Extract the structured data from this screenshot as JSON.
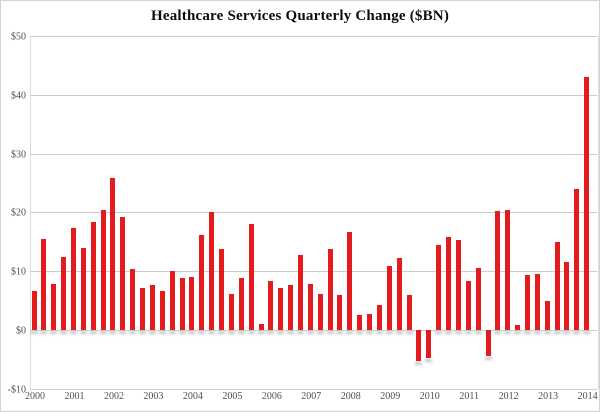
{
  "title": "Healthcare Services Quarterly Change ($BN)",
  "colors": {
    "bar": "#e31b1e",
    "gridline": "#cdcdcd",
    "axis_text": "#4f4f4f",
    "title_text": "#0d0d0d",
    "plot_border": "#dcdcdc"
  },
  "chart_data": {
    "type": "bar",
    "title": "Healthcare Services Quarterly Change ($BN)",
    "xlabel": "",
    "ylabel": "",
    "frequency": "quarterly",
    "x_start": "2000 Q1",
    "x_end": "2014 Q1",
    "x_tick_labels": [
      "2000",
      "2001",
      "2002",
      "2003",
      "2004",
      "2005",
      "2006",
      "2007",
      "2008",
      "2009",
      "2010",
      "2011",
      "2012",
      "2013",
      "2014"
    ],
    "y_tick_labels": [
      "$50",
      "$40",
      "$30",
      "$20",
      "$10",
      "$0",
      "-$10"
    ],
    "y_ticks": [
      50,
      40,
      30,
      20,
      10,
      0,
      -10
    ],
    "ylim": [
      -10,
      50
    ],
    "grid": true,
    "legend": "none",
    "series": [
      {
        "name": "Healthcare Services Quarterly Change ($BN)",
        "values": [
          6.6,
          15.5,
          7.9,
          12.5,
          17.4,
          13.9,
          18.4,
          20.4,
          25.8,
          19.2,
          10.3,
          7.1,
          7.7,
          6.7,
          10.1,
          8.9,
          9.0,
          16.1,
          20.0,
          13.7,
          6.2,
          8.9,
          18.0,
          1.0,
          8.4,
          7.2,
          7.7,
          12.8,
          7.8,
          6.2,
          13.8,
          5.9,
          16.7,
          2.6,
          2.8,
          4.2,
          10.8,
          12.2,
          5.9,
          -5.3,
          -4.7,
          14.5,
          15.8,
          15.3,
          8.4,
          10.5,
          -4.4,
          20.3,
          20.4,
          0.9,
          9.4,
          9.5,
          5.0,
          15.0,
          11.6,
          24.0,
          43.0
        ]
      }
    ]
  }
}
